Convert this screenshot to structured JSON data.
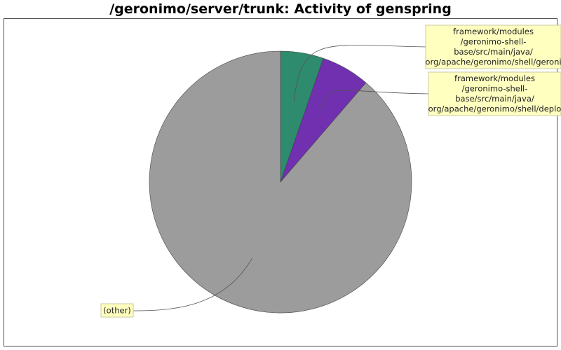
{
  "chart_data": {
    "type": "pie",
    "title": "/geronimo/server/trunk: Activity of genspring",
    "start_angle_deg": 90,
    "direction": "clockwise",
    "slices": [
      {
        "label_lines": [
          "framework/modules",
          "/geronimo-shell-",
          "base/src/main/java/",
          "org/apache/geronimo/shell/geroni"
        ],
        "value": 5.3,
        "color": "#2e8b6e"
      },
      {
        "label_lines": [
          "framework/modules",
          "/geronimo-shell-",
          "base/src/main/java/",
          "org/apache/geronimo/shell/deplo"
        ],
        "value": 6.0,
        "color": "#7030b0"
      },
      {
        "label_lines": [
          "(other)"
        ],
        "value": 88.7,
        "color": "#9c9c9c"
      }
    ]
  }
}
